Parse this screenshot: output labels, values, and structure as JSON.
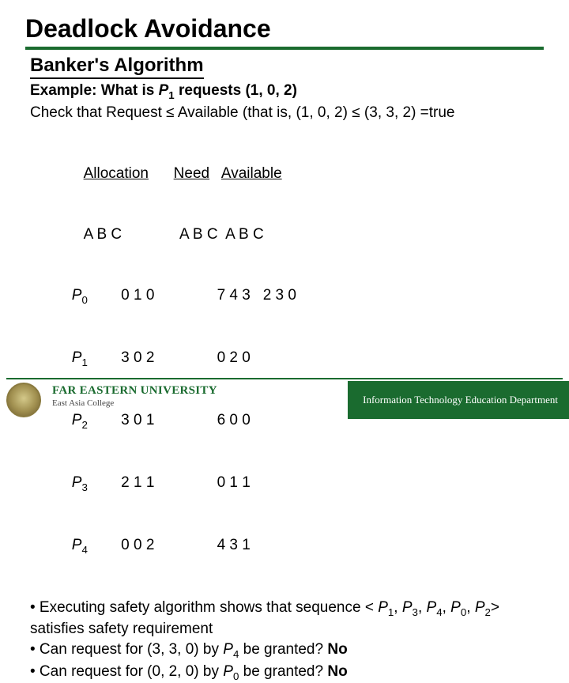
{
  "title": "Deadlock Avoidance",
  "subtitle": "Banker's Algorithm",
  "example": {
    "label_prefix": "Example: What is ",
    "process_var": "P",
    "process_sub": "1",
    "label_suffix": " requests (1, 0, 2)"
  },
  "check_line": {
    "prefix": "Check that Request ",
    "le1": "≤",
    "mid": " Available (that is, (1, 0, 2) ",
    "le2": "≤",
    "suffix": " (3, 3, 2) =true"
  },
  "table": {
    "headers": {
      "allocation": "Allocation",
      "need": "Need",
      "available": "Available"
    },
    "cols": "A B C",
    "rows": [
      {
        "p": "P",
        "i": "0",
        "alloc": "0 1 0",
        "need": "7 4 3",
        "avail": "2 3 0"
      },
      {
        "p": "P",
        "i": "1",
        "alloc": "3 0 2",
        "need": "0 2 0",
        "avail": ""
      },
      {
        "p": "P",
        "i": "2",
        "alloc": "3 0 1",
        "need": " 6 0 0",
        "avail": ""
      },
      {
        "p": "P",
        "i": "3",
        "alloc": "2 1 1",
        "need": "0 1 1",
        "avail": ""
      },
      {
        "p": "P",
        "i": "4",
        "alloc": "0 0 2",
        "need": "4 3 1",
        "avail": ""
      }
    ]
  },
  "bullets": {
    "b1_prefix": "• Executing safety algorithm shows that sequence < ",
    "seq": [
      {
        "p": "P",
        "i": "1"
      },
      {
        "p": "P",
        "i": "3"
      },
      {
        "p": "P",
        "i": "4"
      },
      {
        "p": "P",
        "i": "0"
      },
      {
        "p": "P",
        "i": "2"
      }
    ],
    "b1_suffix": "> satisfies safety requirement",
    "b2_prefix": "• Can request for (3, 3, 0) by ",
    "b2_p": "P",
    "b2_i": "4",
    "b2_suffix": " be granted? ",
    "b2_ans": "No",
    "b3_prefix": "• Can request for (0, 2, 0) by ",
    "b3_p": "P",
    "b3_i": "0",
    "b3_suffix": " be granted? ",
    "b3_ans": "No"
  },
  "footer": {
    "university": "FAR EASTERN UNIVERSITY",
    "college": "East Asia College",
    "department": "Information Technology Education Department"
  },
  "colors": {
    "accent": "#1a6b2f",
    "text": "#000000",
    "background": "#ffffff"
  }
}
